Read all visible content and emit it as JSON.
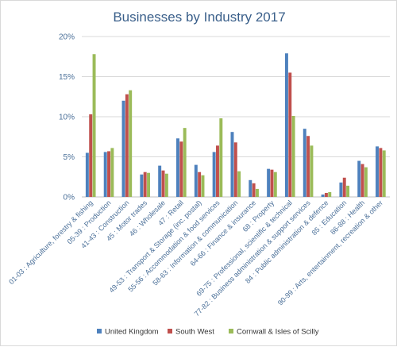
{
  "chart_data": {
    "type": "bar",
    "title": "Businesses by Industry 2017",
    "xlabel": "",
    "ylabel": "",
    "ylim": [
      0,
      20
    ],
    "yticks": [
      "0%",
      "5%",
      "10%",
      "15%",
      "20%"
    ],
    "grid": true,
    "legend_position": "bottom",
    "categories": [
      "01-03 : Agriculture, forestry & fishing",
      "05-39 : Production",
      "41-43 : Construction",
      "45 : Motor trades",
      "46 : Wholesale",
      "47 : Retail",
      "49-53 : Transport & Storage (inc. postal)",
      "55-56 : Accommodation & food services",
      "58-63 : Information & communication",
      "64-66 : Finance & insurance",
      "68 : Property",
      "69-75 : Professional, scientific & technical",
      "77-82 : Business administration & support services",
      "84 : Public administration & defence",
      "85 : Education",
      "86-88 : Health",
      "90-99 : Arts, entertainment, recreation & other"
    ],
    "series": [
      {
        "name": "United Kingdom",
        "color": "#4e81bd",
        "values": [
          5.5,
          5.6,
          12.0,
          2.8,
          3.9,
          7.3,
          4.0,
          5.6,
          8.1,
          2.1,
          3.5,
          17.9,
          8.5,
          0.3,
          1.8,
          4.5,
          6.3
        ]
      },
      {
        "name": "South West",
        "color": "#c0504d",
        "values": [
          10.3,
          5.7,
          12.8,
          3.1,
          3.3,
          6.9,
          3.1,
          6.4,
          6.8,
          1.7,
          3.4,
          15.5,
          7.6,
          0.5,
          2.4,
          4.1,
          6.1
        ]
      },
      {
        "name": "Cornwall & Isles of Scilly",
        "color": "#9bbb59",
        "values": [
          17.8,
          6.1,
          13.3,
          3.0,
          2.9,
          8.6,
          2.7,
          9.8,
          3.2,
          1.0,
          3.1,
          10.1,
          6.4,
          0.6,
          1.4,
          3.7,
          5.8
        ]
      }
    ]
  }
}
